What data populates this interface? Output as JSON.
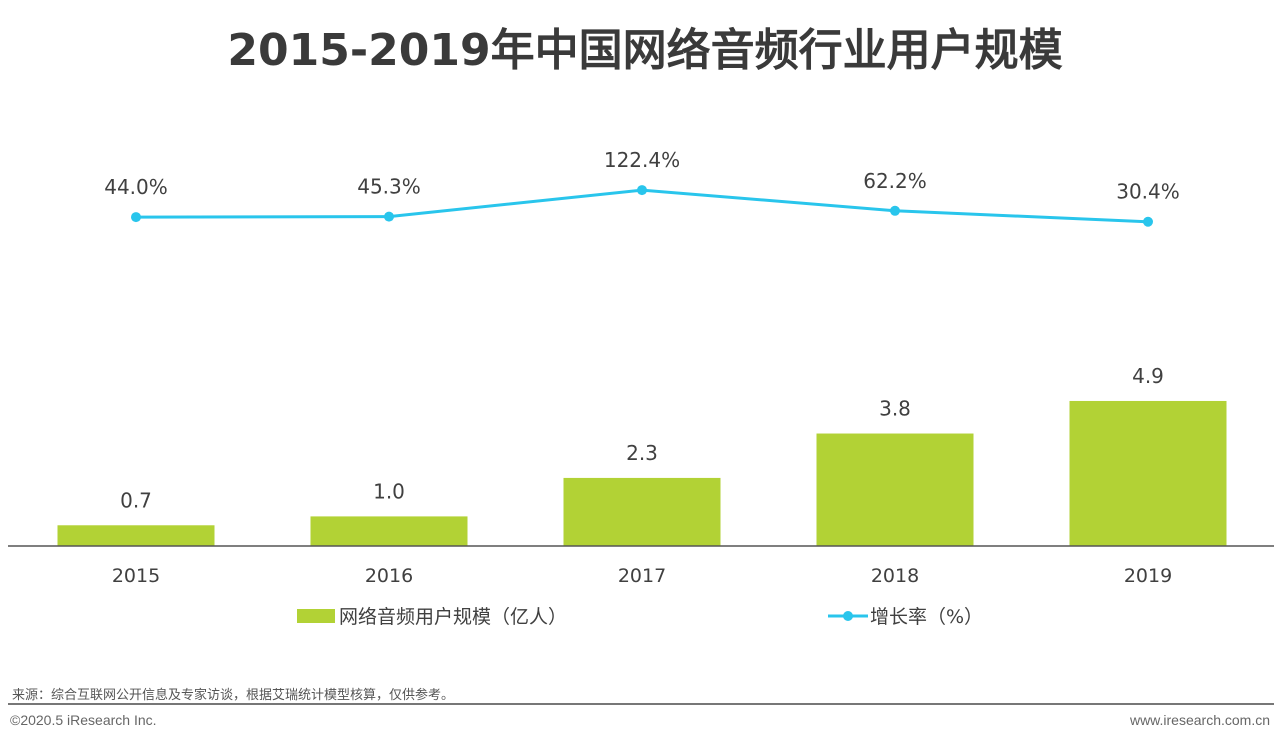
{
  "chart_data": {
    "type": "bar+line",
    "title": "2015-2019年中国网络音频行业用户规模",
    "categories": [
      "2015",
      "2016",
      "2017",
      "2018",
      "2019"
    ],
    "series": [
      {
        "name": "网络音频用户规模（亿人）",
        "type": "bar",
        "values": [
          0.7,
          1.0,
          2.3,
          3.8,
          4.9
        ],
        "labels": [
          "0.7",
          "1.0",
          "2.3",
          "3.8",
          "4.9"
        ],
        "color": "#b2d235"
      },
      {
        "name": "增长率（%）",
        "type": "line",
        "values": [
          44.0,
          45.3,
          122.4,
          62.2,
          30.4
        ],
        "labels": [
          "44.0%",
          "45.3%",
          "122.4%",
          "62.2%",
          "30.4%"
        ],
        "color": "#29c5ec"
      }
    ],
    "legend_position": "bottom",
    "grid": false
  },
  "footer": {
    "source": "来源：综合互联网公开信息及专家访谈，根据艾瑞统计模型核算，仅供参考。",
    "copyright": "©2020.5 iResearch Inc.",
    "website": "www.iresearch.com.cn"
  }
}
